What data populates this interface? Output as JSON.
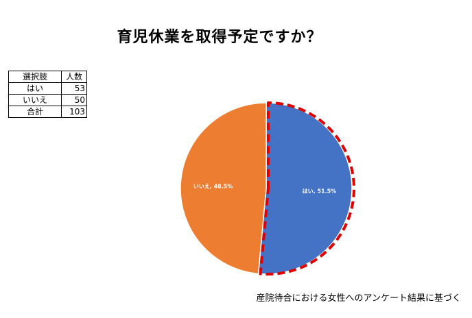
{
  "title": "育児休業を取得予定ですか？",
  "table": {
    "headers": [
      "選択肢",
      "人数"
    ],
    "rows": [
      {
        "label": "はい",
        "value": "53"
      },
      {
        "label": "いいえ",
        "value": "50"
      },
      {
        "label": "合計",
        "value": "103"
      }
    ]
  },
  "chart_data": {
    "type": "pie",
    "title": "育児休業を取得予定ですか？",
    "slices": [
      {
        "label": "はい",
        "value": 53,
        "percent": 51.5,
        "data_label": "はい, 51.5%",
        "color": "#4472C4",
        "highlighted": true
      },
      {
        "label": "いいえ",
        "value": 50,
        "percent": 48.5,
        "data_label": "いいえ, 48.5%",
        "color": "#ED7D31",
        "highlighted": false
      }
    ],
    "highlight_color": "#E00000"
  },
  "footnote": "産院待合における女性へのアンケート結果に基づく"
}
